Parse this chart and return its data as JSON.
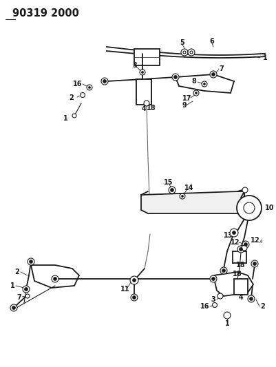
{
  "title": "90319 2000",
  "bg_color": "#ffffff",
  "fig_width": 4.01,
  "fig_height": 5.33,
  "dpi": 100,
  "line_color": "#1a1a1a",
  "label_fontsize": 7,
  "label_fontweight": "bold",
  "gray_color": "#aaaaaa"
}
